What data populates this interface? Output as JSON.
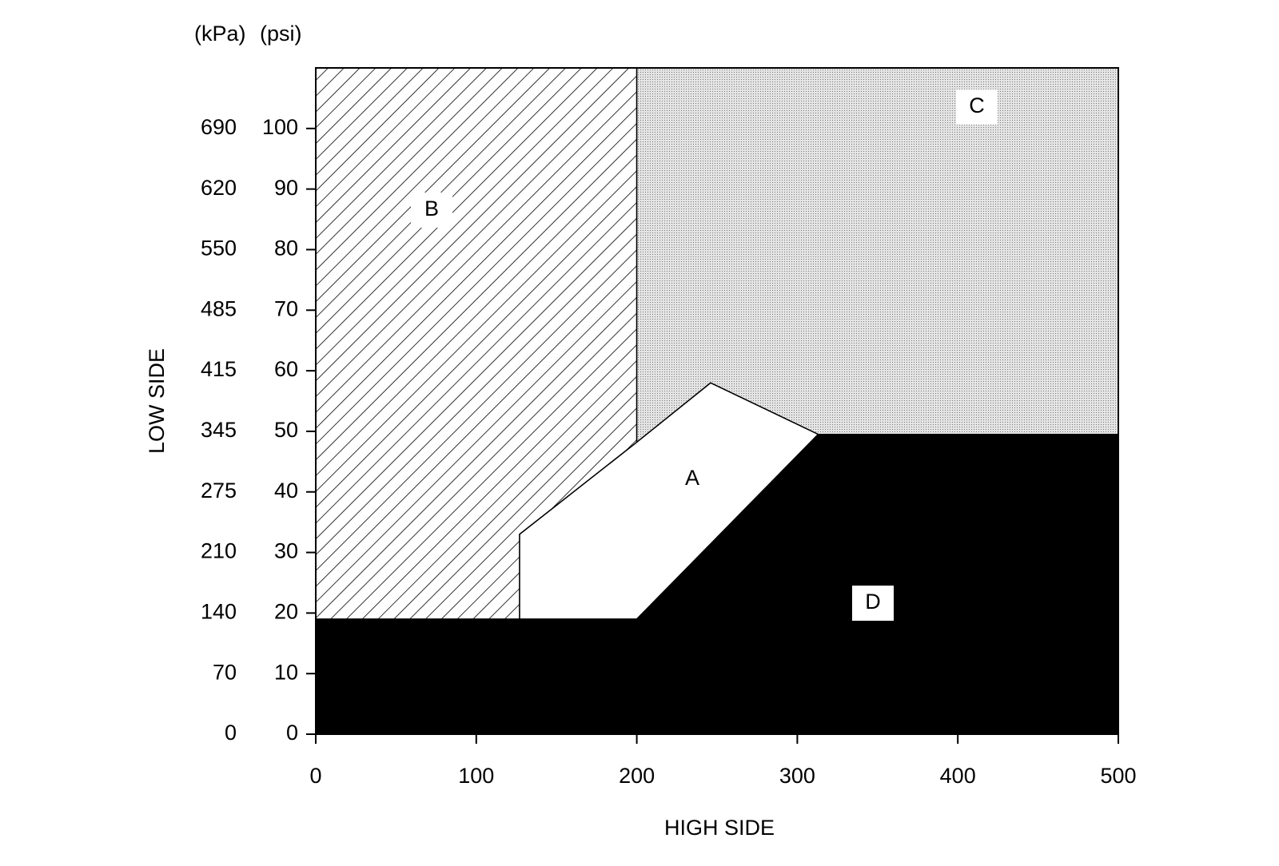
{
  "chart_data": {
    "type": "region",
    "x_label": "HIGH SIDE",
    "y_label": "LOW SIDE",
    "y_units": [
      "(kPa)",
      "(psi)"
    ],
    "xlim": [
      0,
      500
    ],
    "ylim": [
      0,
      110
    ],
    "xticks": [
      0,
      100,
      200,
      300,
      400,
      500
    ],
    "yticks": [
      0,
      10,
      20,
      30,
      40,
      50,
      60,
      70,
      80,
      90,
      100
    ],
    "y_secondary_ticks": [
      {
        "value": 0,
        "label": "0"
      },
      {
        "value": 10,
        "label": "70"
      },
      {
        "value": 20,
        "label": "140"
      },
      {
        "value": 30,
        "label": "210"
      },
      {
        "value": 40,
        "label": "275"
      },
      {
        "value": 50,
        "label": "345"
      },
      {
        "value": 60,
        "label": "415"
      },
      {
        "value": 70,
        "label": "485"
      },
      {
        "value": 80,
        "label": "550"
      },
      {
        "value": 90,
        "label": "620"
      },
      {
        "value": 100,
        "label": "690"
      }
    ],
    "regions": [
      {
        "name": "B",
        "fill": "hatch",
        "x": [
          0,
          127,
          127,
          200,
          200,
          0
        ],
        "y": [
          19,
          19,
          33,
          48.2,
          110,
          110
        ]
      },
      {
        "name": "C",
        "fill": "stipple",
        "x": [
          200,
          500,
          500,
          313,
          246,
          200
        ],
        "y": [
          110,
          110,
          49.5,
          49.5,
          58,
          48.2
        ]
      },
      {
        "name": "A",
        "fill": "white",
        "x": [
          127,
          200,
          313,
          246,
          200,
          127
        ],
        "y": [
          19,
          19,
          49.5,
          58,
          48.2,
          33
        ]
      },
      {
        "name": "D",
        "fill": "black",
        "x": [
          0,
          500,
          500,
          313,
          200,
          0
        ],
        "y": [
          0,
          0,
          49.5,
          49.5,
          19,
          19
        ]
      }
    ]
  }
}
